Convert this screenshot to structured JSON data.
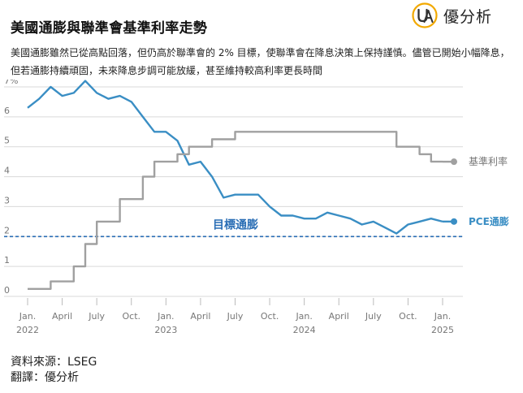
{
  "title": "美國通膨與聯準會基準利率走勢",
  "subtitle": "美國通膨雖然已從高點回落，但仍高於聯準會的 2% 目標，使聯準會在降息決策上保持謹慎。儘管已開始小幅降息，但若通膨持續頑固，未來降息步調可能放緩，甚至維持較高利率更長時間",
  "logo": {
    "text": "優分析",
    "mark_color": "#f2a900",
    "mark_icon": "ua-monogram-icon"
  },
  "source": {
    "line1": "資料來源：LSEG",
    "line2": "翻譯：優分析"
  },
  "chart_data": {
    "type": "line",
    "x_start": "2022-01",
    "x_end": "2025-01",
    "x_ticks": [
      {
        "date": "2022-01",
        "label": "Jan.",
        "year": "2022"
      },
      {
        "date": "2022-04",
        "label": "April",
        "year": ""
      },
      {
        "date": "2022-07",
        "label": "July",
        "year": ""
      },
      {
        "date": "2022-10",
        "label": "Oct.",
        "year": ""
      },
      {
        "date": "2023-01",
        "label": "Jan.",
        "year": "2023"
      },
      {
        "date": "2023-04",
        "label": "April",
        "year": ""
      },
      {
        "date": "2023-07",
        "label": "July",
        "year": ""
      },
      {
        "date": "2023-10",
        "label": "Oct.",
        "year": ""
      },
      {
        "date": "2024-01",
        "label": "Jan.",
        "year": "2024"
      },
      {
        "date": "2024-04",
        "label": "April",
        "year": ""
      },
      {
        "date": "2024-07",
        "label": "July",
        "year": ""
      },
      {
        "date": "2024-10",
        "label": "Oct.",
        "year": ""
      },
      {
        "date": "2025-01",
        "label": "Jan.",
        "year": "2025"
      }
    ],
    "y_ticks": [
      {
        "value": 0,
        "label": "0"
      },
      {
        "value": 1,
        "label": "1"
      },
      {
        "value": 2,
        "label": "2"
      },
      {
        "value": 3,
        "label": "3"
      },
      {
        "value": 4,
        "label": "4"
      },
      {
        "value": 5,
        "label": "5"
      },
      {
        "value": 6,
        "label": "6"
      },
      {
        "value": 7,
        "label": "7%"
      }
    ],
    "ylim": [
      0,
      7
    ],
    "grid": true,
    "target": {
      "value": 2,
      "label": "目標通膨",
      "color": "#2a6eb5"
    },
    "series": [
      {
        "name": "PCE通膨",
        "kind": "line",
        "color": "#3a8ec4",
        "points": [
          [
            "2022-01",
            6.3
          ],
          [
            "2022-02",
            6.6
          ],
          [
            "2022-03",
            7.0
          ],
          [
            "2022-04",
            6.7
          ],
          [
            "2022-05",
            6.8
          ],
          [
            "2022-06",
            7.2
          ],
          [
            "2022-07",
            6.8
          ],
          [
            "2022-08",
            6.6
          ],
          [
            "2022-09",
            6.7
          ],
          [
            "2022-10",
            6.5
          ],
          [
            "2022-11",
            6.0
          ],
          [
            "2022-12",
            5.5
          ],
          [
            "2023-01",
            5.5
          ],
          [
            "2023-02",
            5.2
          ],
          [
            "2023-03",
            4.4
          ],
          [
            "2023-04",
            4.5
          ],
          [
            "2023-05",
            4.0
          ],
          [
            "2023-06",
            3.3
          ],
          [
            "2023-07",
            3.4
          ],
          [
            "2023-08",
            3.4
          ],
          [
            "2023-09",
            3.4
          ],
          [
            "2023-10",
            3.0
          ],
          [
            "2023-11",
            2.7
          ],
          [
            "2023-12",
            2.7
          ],
          [
            "2024-01",
            2.6
          ],
          [
            "2024-02",
            2.6
          ],
          [
            "2024-03",
            2.8
          ],
          [
            "2024-04",
            2.7
          ],
          [
            "2024-05",
            2.6
          ],
          [
            "2024-06",
            2.4
          ],
          [
            "2024-07",
            2.5
          ],
          [
            "2024-08",
            2.3
          ],
          [
            "2024-09",
            2.1
          ],
          [
            "2024-10",
            2.4
          ],
          [
            "2024-11",
            2.5
          ],
          [
            "2024-12",
            2.6
          ],
          [
            "2025-01",
            2.5
          ]
        ]
      },
      {
        "name": "基準利率",
        "kind": "step",
        "color": "#a0a0a0",
        "points": [
          [
            "2022-01",
            0.25
          ],
          [
            "2022-03",
            0.5
          ],
          [
            "2022-05",
            1.0
          ],
          [
            "2022-06",
            1.75
          ],
          [
            "2022-07",
            2.5
          ],
          [
            "2022-09",
            3.25
          ],
          [
            "2022-11",
            4.0
          ],
          [
            "2022-12",
            4.5
          ],
          [
            "2023-02",
            4.75
          ],
          [
            "2023-03",
            5.0
          ],
          [
            "2023-05",
            5.25
          ],
          [
            "2023-07",
            5.5
          ],
          [
            "2024-09",
            5.0
          ],
          [
            "2024-11",
            4.75
          ],
          [
            "2024-12",
            4.5
          ],
          [
            "2025-01",
            4.5
          ]
        ]
      }
    ]
  }
}
